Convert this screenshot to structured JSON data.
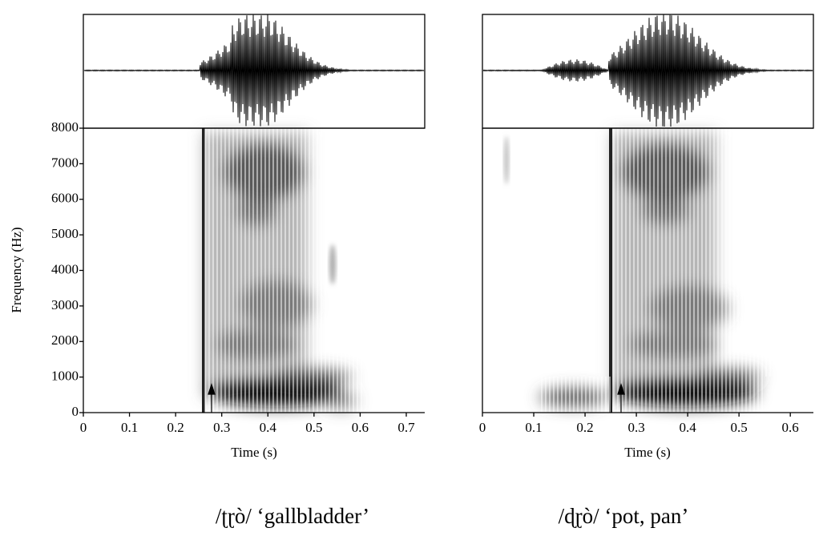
{
  "chart_data": [
    {
      "type": "spectrogram",
      "ylabel": "Frequency (Hz)",
      "xlabel": "Time (s)",
      "caption": "/ʈɽò/ ‘gallbladder’",
      "xlim": [
        0,
        0.74
      ],
      "xticks": [
        0,
        0.1,
        0.2,
        0.3,
        0.4,
        0.5,
        0.6,
        0.7
      ],
      "ylim": [
        0,
        8000
      ],
      "yticks": [
        0,
        1000,
        2000,
        3000,
        4000,
        5000,
        6000,
        7000,
        8000
      ]
    },
    {
      "type": "spectrogram",
      "xlabel": "Time (s)",
      "caption": "/ɖɽò/ ‘pot, pan’",
      "xlim": [
        0,
        0.645
      ],
      "xticks": [
        0,
        0.1,
        0.2,
        0.3,
        0.4,
        0.5,
        0.6
      ],
      "ylim": [
        0,
        8000
      ]
    }
  ]
}
